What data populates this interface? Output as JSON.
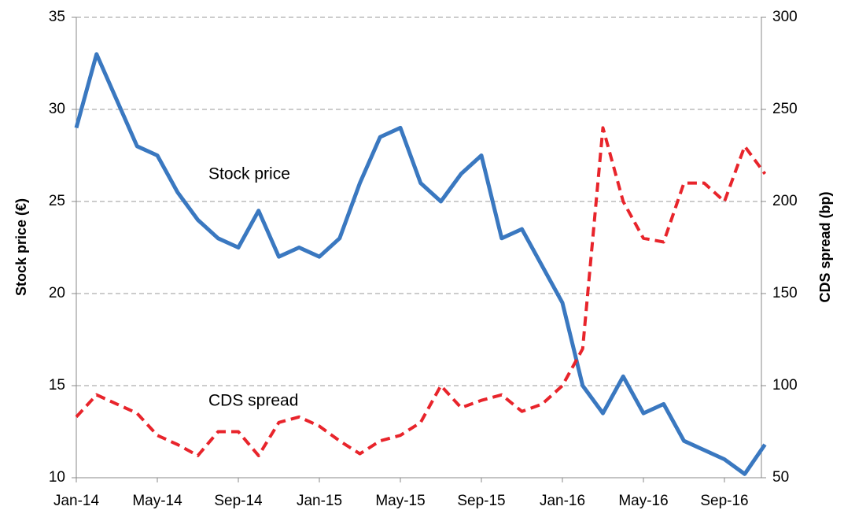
{
  "chart_data": {
    "type": "line",
    "x": [
      "2014-01",
      "2014-02",
      "2014-03",
      "2014-04",
      "2014-05",
      "2014-06",
      "2014-07",
      "2014-08",
      "2014-09",
      "2014-10",
      "2014-11",
      "2014-12",
      "2015-01",
      "2015-02",
      "2015-03",
      "2015-04",
      "2015-05",
      "2015-06",
      "2015-07",
      "2015-08",
      "2015-09",
      "2015-10",
      "2015-11",
      "2015-12",
      "2016-01",
      "2016-02",
      "2016-03",
      "2016-04",
      "2016-05",
      "2016-06",
      "2016-07",
      "2016-08",
      "2016-09",
      "2016-10",
      "2016-11"
    ],
    "series": [
      {
        "name": "Stock price",
        "color": "#3a78c0",
        "values": [
          29,
          33,
          30.5,
          28,
          27.5,
          25.5,
          24,
          23,
          22.5,
          24.5,
          22,
          22.5,
          22,
          23,
          26,
          28.5,
          29,
          26,
          25,
          26.5,
          27.5,
          23,
          23.5,
          21.5,
          19.5,
          15,
          13.5,
          15.5,
          13.5,
          14,
          12,
          11.5,
          11,
          10.2,
          11.8
        ]
      },
      {
        "name": "CDS spread",
        "color": "#e8242b",
        "axis": "y2",
        "values": [
          83,
          95,
          90,
          85,
          73,
          68,
          62,
          75,
          75,
          62,
          80,
          83,
          78,
          70,
          63,
          70,
          73,
          80,
          100,
          88,
          92,
          95,
          86,
          90,
          100,
          120,
          240,
          200,
          180,
          178,
          210,
          210,
          200,
          230,
          215
        ]
      }
    ],
    "xlim": [
      "2014-01",
      "2016-11"
    ],
    "xticks": [
      {
        "value": "2014-01",
        "label": "Jan-14"
      },
      {
        "value": "2014-05",
        "label": "May-14"
      },
      {
        "value": "2014-09",
        "label": "Sep-14"
      },
      {
        "value": "2015-01",
        "label": "Jan-15"
      },
      {
        "value": "2015-05",
        "label": "May-15"
      },
      {
        "value": "2015-09",
        "label": "Sep-15"
      },
      {
        "value": "2016-01",
        "label": "Jan-16"
      },
      {
        "value": "2016-05",
        "label": "May-16"
      },
      {
        "value": "2016-09",
        "label": "Sep-16"
      }
    ],
    "ylim": [
      10,
      35
    ],
    "yticks": [
      10,
      15,
      20,
      25,
      30,
      35
    ],
    "y2lim": [
      50,
      300
    ],
    "y2ticks": [
      50,
      100,
      150,
      200,
      250,
      300
    ],
    "ylabel": "Stock price (€)",
    "y2label": "CDS spread (bp)",
    "grid": true
  }
}
